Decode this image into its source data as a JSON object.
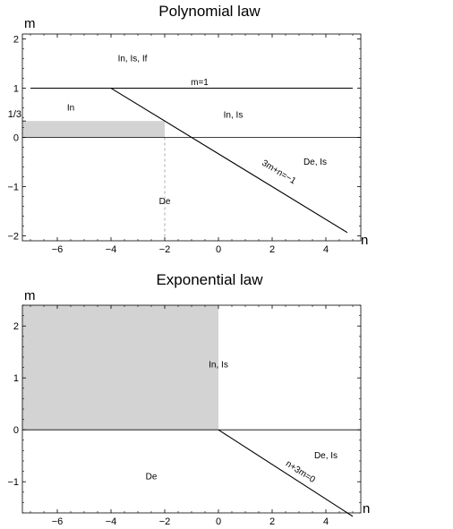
{
  "chart_data": [
    {
      "type": "region",
      "title": "Polynomial law",
      "xlabel": "n",
      "ylabel": "m",
      "xlim": [
        -7.3,
        5.3
      ],
      "ylim": [
        -2.1,
        2.1
      ],
      "xticks": [
        -6,
        -4,
        -2,
        0,
        2,
        4
      ],
      "yticks": [
        -2,
        -1,
        0,
        1,
        2
      ],
      "xtick_labels": [
        "−6",
        "−4",
        "−2",
        "0",
        "2",
        "4"
      ],
      "ytick_labels": [
        "−2",
        "−1",
        "0",
        "1",
        "2"
      ],
      "extra_ytick": {
        "value": 0.3333,
        "label": "1/3"
      },
      "shaded_region": {
        "x": [
          -7.3,
          -2
        ],
        "y": [
          0,
          0.3333
        ],
        "color": "#d3d3d3"
      },
      "dashed_line": {
        "x": -2,
        "y": [
          -2.1,
          0
        ]
      },
      "lines": [
        {
          "label": "m=1",
          "x": [
            -7,
            5
          ],
          "y": [
            1,
            1
          ],
          "label_at": [
            -0.7,
            1.06
          ]
        },
        {
          "label": "3m+n=−1",
          "x": [
            -4,
            4.8
          ],
          "y": [
            1,
            -1.9333
          ],
          "label_at": [
            2.2,
            -0.75
          ]
        }
      ],
      "zero_line": true,
      "annotations": [
        {
          "text": "In, Is, If",
          "at": [
            -3.2,
            1.55
          ]
        },
        {
          "text": "In",
          "at": [
            -5.5,
            0.55
          ]
        },
        {
          "text": "In, Is",
          "at": [
            0.55,
            0.4
          ]
        },
        {
          "text": "De, Is",
          "at": [
            3.6,
            -0.55
          ]
        },
        {
          "text": "De",
          "at": [
            -2,
            -1.35
          ]
        }
      ]
    },
    {
      "type": "region",
      "title": "Exponential law",
      "xlabel": "n",
      "ylabel": "m",
      "xlim": [
        -7.3,
        5.3
      ],
      "ylim": [
        -1.6,
        2.4
      ],
      "xticks": [
        -6,
        -4,
        -2,
        0,
        2,
        4
      ],
      "yticks": [
        -1,
        0,
        1,
        2
      ],
      "xtick_labels": [
        "−6",
        "−4",
        "−2",
        "0",
        "2",
        "4"
      ],
      "ytick_labels": [
        "−1",
        "0",
        "1",
        "2"
      ],
      "shaded_region": {
        "x": [
          -7.3,
          0
        ],
        "y": [
          0,
          2.4
        ],
        "color": "#d3d3d3"
      },
      "lines": [
        {
          "label": "n+3m=0",
          "x": [
            0,
            5
          ],
          "y": [
            0,
            -1.6667
          ],
          "label_at": [
            3.0,
            -0.85
          ]
        }
      ],
      "zero_line": true,
      "annotations": [
        {
          "text": "In, Is",
          "at": [
            0,
            1.2
          ]
        },
        {
          "text": "De, Is",
          "at": [
            4,
            -0.55
          ]
        },
        {
          "text": "De",
          "at": [
            -2.5,
            -0.95
          ]
        }
      ]
    }
  ]
}
